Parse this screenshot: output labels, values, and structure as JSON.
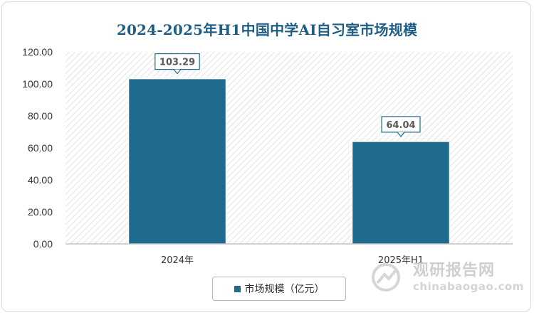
{
  "chart_data": {
    "type": "bar",
    "title": "2024-2025年H1中国中学AI自习室市场规模",
    "categories": [
      "2024年",
      "2025年H1"
    ],
    "series": [
      {
        "name": "市场规模（亿元）",
        "values": [
          103.29,
          64.04
        ],
        "color": "#1f6b8e"
      }
    ],
    "data_labels": [
      "103.29",
      "64.04"
    ],
    "ylim": [
      0,
      120
    ],
    "y_ticks": [
      "0.00",
      "20.00",
      "40.00",
      "60.00",
      "80.00",
      "100.00",
      "120.00"
    ],
    "grid": false,
    "plot_background": "hatched-diagonal",
    "legend_position": "bottom",
    "xlabel": "",
    "ylabel": ""
  },
  "watermark": {
    "brand": "观研报告网",
    "url": "chinabaogao.com"
  },
  "colors": {
    "title": "#1f5e84",
    "bar": "#1f6b8e",
    "hatch": "#d9d9d9"
  }
}
